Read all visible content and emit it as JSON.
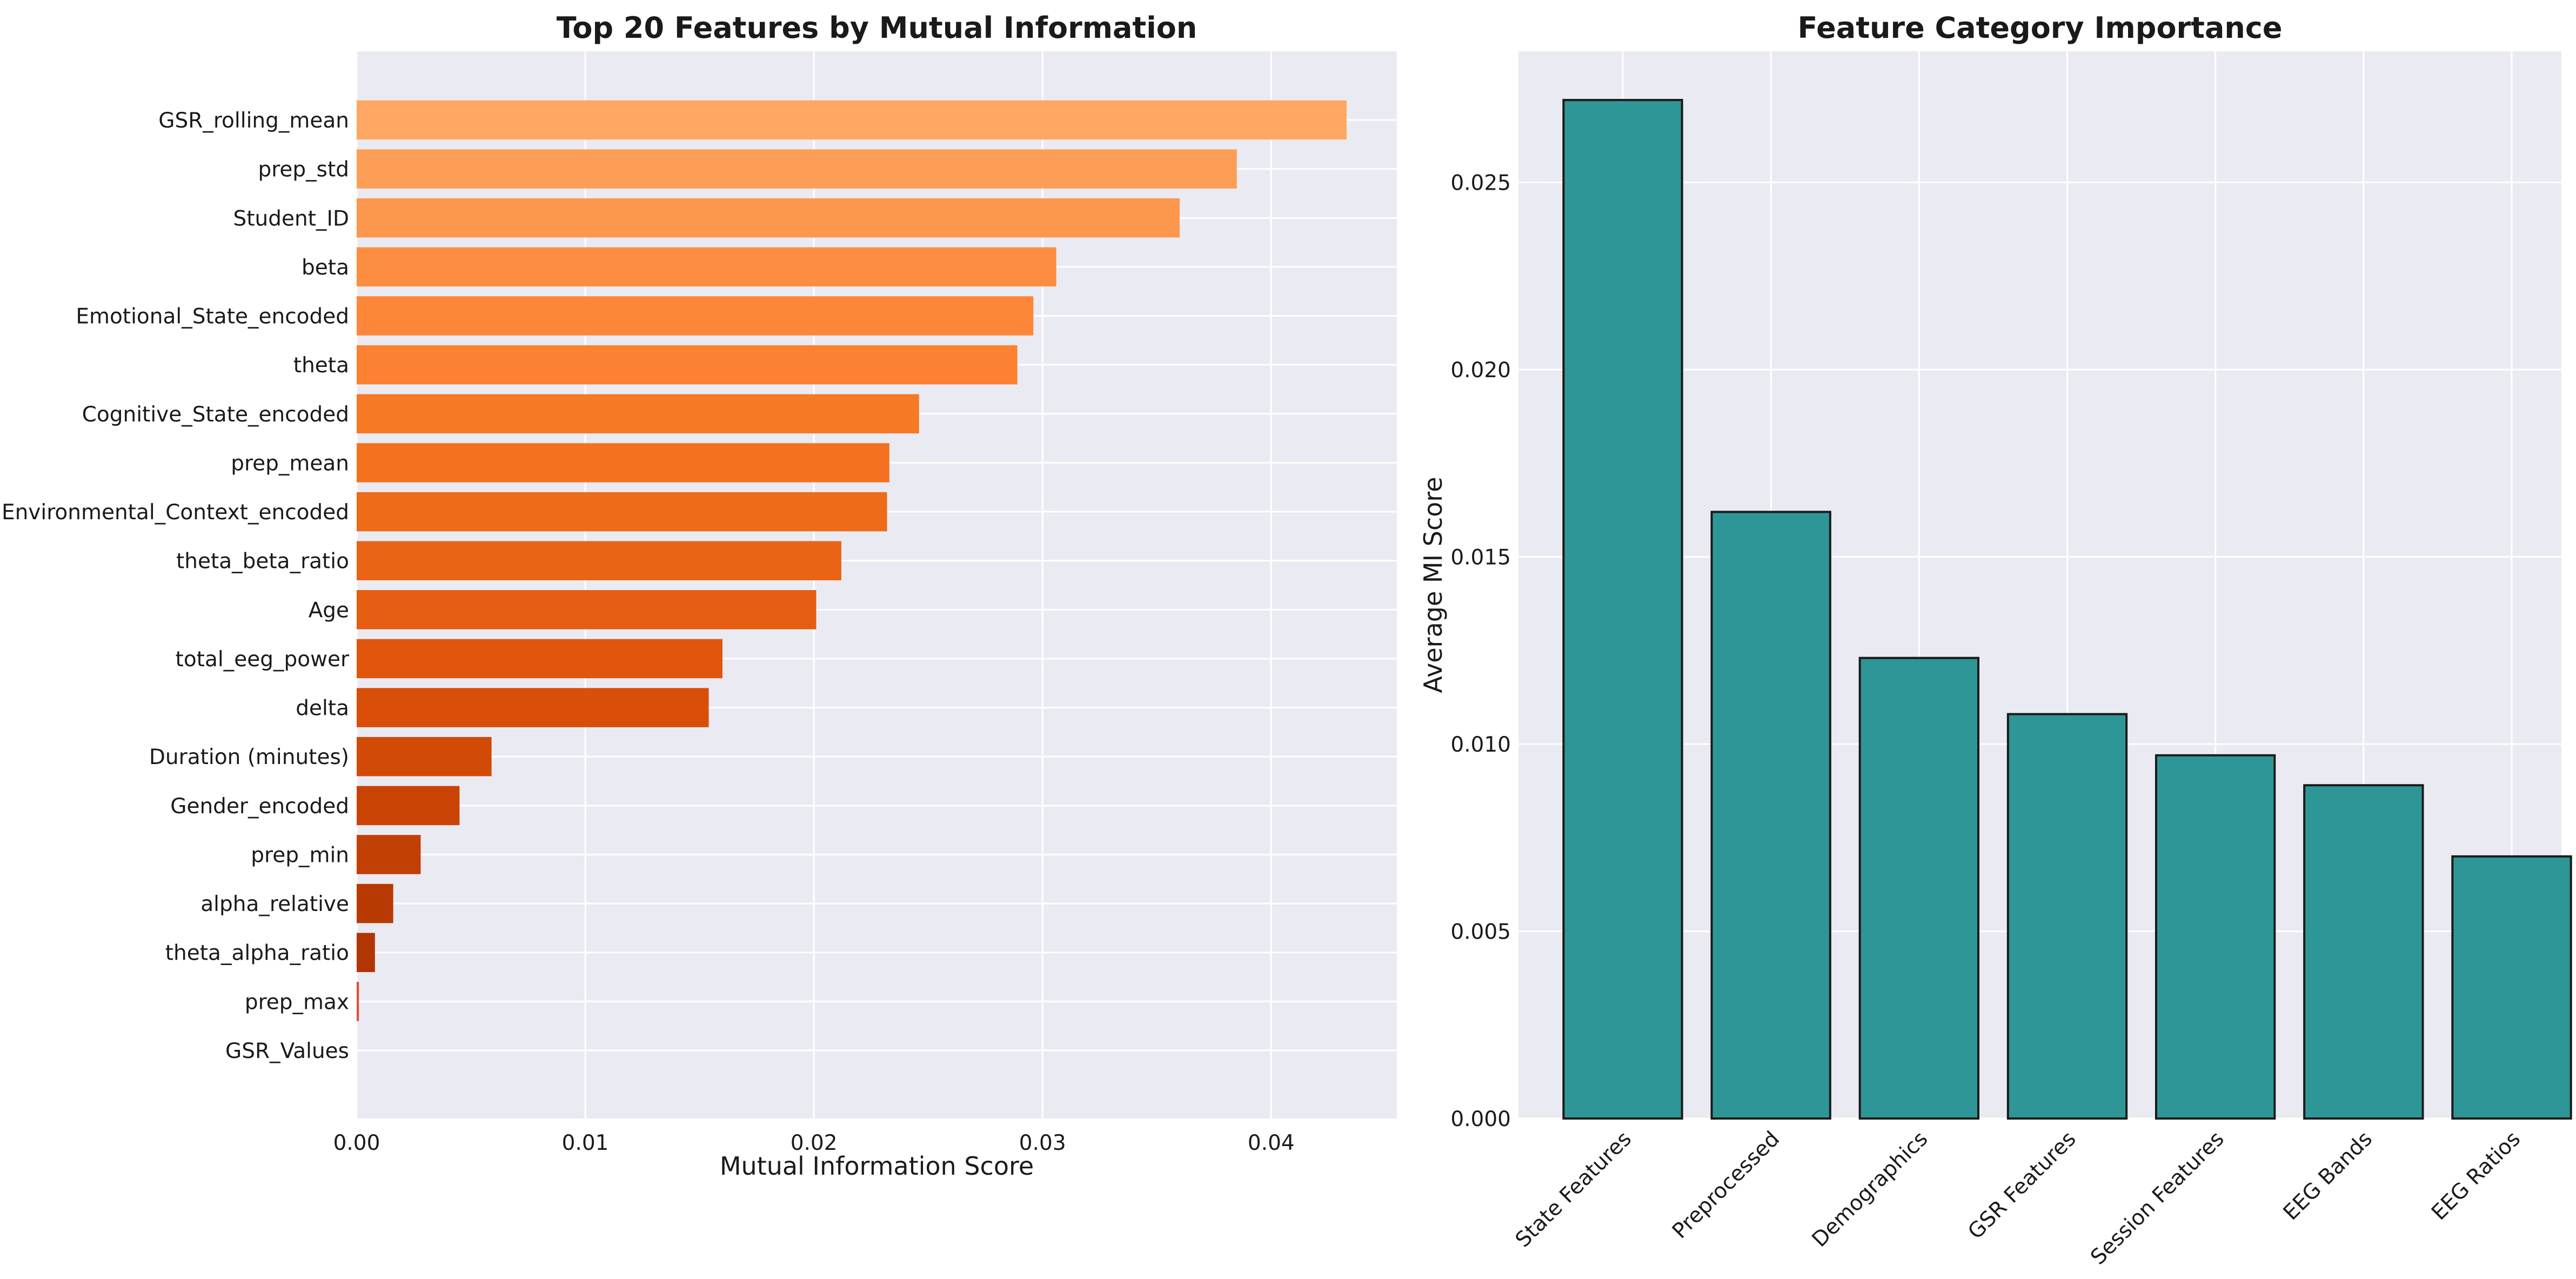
{
  "chart_data": [
    {
      "type": "bar",
      "orientation": "horizontal",
      "title": "Top 20 Features by Mutual Information",
      "xlabel": "Mutual Information Score",
      "ylabel": "",
      "xlim": [
        0,
        0.0455
      ],
      "xticks": [
        0.0,
        0.01,
        0.02,
        0.03,
        0.04
      ],
      "xtick_labels": [
        "0.00",
        "0.01",
        "0.02",
        "0.03",
        "0.04"
      ],
      "grid": true,
      "categories": [
        "GSR_rolling_mean",
        "prep_std",
        "Student_ID",
        "beta",
        "Emotional_State_encoded",
        "theta",
        "Cognitive_State_encoded",
        "prep_mean",
        "Environmental_Context_encoded",
        "theta_beta_ratio",
        "Age",
        "total_eeg_power",
        "delta",
        "Duration (minutes)",
        "Gender_encoded",
        "prep_min",
        "alpha_relative",
        "theta_alpha_ratio",
        "prep_max",
        "GSR_Values"
      ],
      "values": [
        0.0433,
        0.0385,
        0.036,
        0.0306,
        0.0296,
        0.0289,
        0.0246,
        0.0233,
        0.0232,
        0.0212,
        0.0201,
        0.016,
        0.0154,
        0.0059,
        0.0045,
        0.0028,
        0.0016,
        0.0008,
        0.0001,
        0.0
      ],
      "colors": [
        "#fda762",
        "#fd9e56",
        "#fd974d",
        "#fd8d40",
        "#fd8738",
        "#fc8130",
        "#f67926",
        "#f3721f",
        "#ee6b1a",
        "#ea6415",
        "#e55d11",
        "#df560c",
        "#d94e08",
        "#d14a06",
        "#c94404",
        "#c13f03",
        "#b83a03",
        "#b13603",
        "#d9543a",
        "#a63303"
      ]
    },
    {
      "type": "bar",
      "title": "Feature Category Importance",
      "xlabel": "",
      "ylabel": "Average MI Score",
      "ylim": [
        0,
        0.0285
      ],
      "yticks": [
        0.0,
        0.005,
        0.01,
        0.015,
        0.02,
        0.025
      ],
      "ytick_labels": [
        "0.000",
        "0.005",
        "0.010",
        "0.015",
        "0.020",
        "0.025"
      ],
      "grid": true,
      "categories": [
        "State Features",
        "Preprocessed",
        "Demographics",
        "GSR Features",
        "Session Features",
        "EEG Bands",
        "EEG Ratios"
      ],
      "values": [
        0.0272,
        0.0162,
        0.0123,
        0.0108,
        0.0097,
        0.0089,
        0.007
      ],
      "bar_color": "#2e9696",
      "edge_color": "#1a1a1a"
    }
  ]
}
